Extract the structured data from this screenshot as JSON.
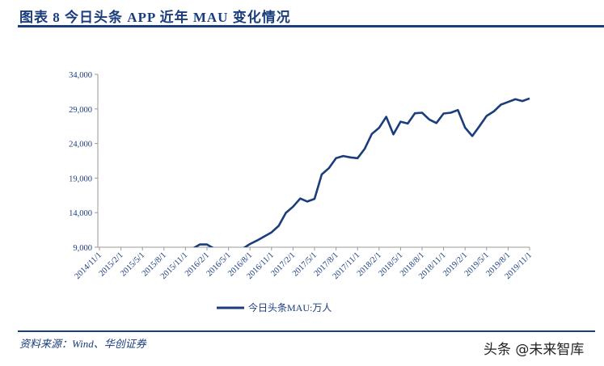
{
  "header": {
    "title": "图表 8   今日头条 APP 近年 MAU 变化情况"
  },
  "footer": {
    "source": "资料来源：Wind、华创证券",
    "watermark": "头条 @未来智库"
  },
  "colors": {
    "line": "#1a3d7c",
    "accent": "#1a3d7c"
  },
  "chart_data": {
    "type": "line",
    "title": "",
    "xlabel": "",
    "ylabel": "",
    "ylim": [
      9000,
      34000
    ],
    "yticks": [
      9000,
      14000,
      19000,
      24000,
      29000,
      34000
    ],
    "ytick_labels": [
      "9,000",
      "14,000",
      "19,000",
      "24,000",
      "29,000",
      "34,000"
    ],
    "xtick_labels": [
      "2014/11/1",
      "2015/2/1",
      "2015/5/1",
      "2015/8/1",
      "2015/11/1",
      "2016/2/1",
      "2016/5/1",
      "2016/8/1",
      "2016/11/1",
      "2017/2/1",
      "2017/5/1",
      "2017/8/1",
      "2017/11/1",
      "2018/2/1",
      "2018/5/1",
      "2018/8/1",
      "2018/11/1",
      "2019/2/1",
      "2019/5/1",
      "2019/8/1",
      "2019/11/1"
    ],
    "x_start": "2014/11",
    "x_end": "2019/11",
    "x_interval": "monthly",
    "grid": false,
    "legend_position": "bottom",
    "series": [
      {
        "name": "今日头条MAU:万人",
        "values": [
          null,
          null,
          null,
          null,
          null,
          null,
          null,
          null,
          null,
          null,
          null,
          null,
          null,
          8800,
          9400,
          9400,
          8800,
          null,
          null,
          null,
          8800,
          9470,
          9980,
          10570,
          11150,
          12090,
          13970,
          14870,
          16040,
          15610,
          16000,
          19520,
          20430,
          21870,
          22190,
          21990,
          21870,
          23240,
          25390,
          26250,
          27860,
          25320,
          27150,
          26880,
          28370,
          28450,
          27470,
          26960,
          28330,
          28450,
          28840,
          26290,
          25080,
          26490,
          27980,
          28640,
          29620,
          30010,
          30400,
          30130,
          30520
        ]
      }
    ]
  }
}
